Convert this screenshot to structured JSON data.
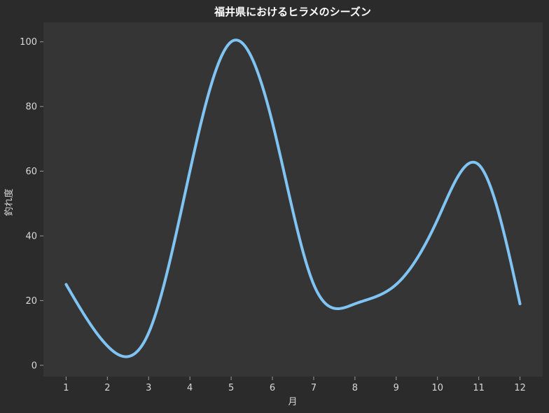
{
  "chart_data": {
    "type": "line",
    "title": "福井県におけるヒラメのシーズン",
    "xlabel": "月",
    "ylabel": "釣れ度",
    "x": [
      1,
      2,
      3,
      4,
      5,
      6,
      7,
      8,
      9,
      10,
      11,
      12
    ],
    "x_ticks": [
      "1",
      "2",
      "3",
      "4",
      "5",
      "6",
      "7",
      "8",
      "9",
      "10",
      "11",
      "12"
    ],
    "y_ticks": [
      "0",
      "20",
      "40",
      "60",
      "80",
      "100"
    ],
    "series": [
      {
        "name": "",
        "values": [
          25,
          6,
          10,
          60,
          100,
          75,
          25,
          19,
          25,
          45,
          62,
          19
        ]
      }
    ],
    "xlim": [
      0.45,
      12.55
    ],
    "ylim": [
      -3.5,
      106
    ],
    "smooth": true,
    "grid": false,
    "legend": "none",
    "colors": {
      "figure_background": "#2b2b2b",
      "plot_background": "#353535",
      "line": "#80c4f4",
      "text": "#d8d8d8",
      "title": "#ffffff",
      "axis": "#9a9a9a"
    }
  }
}
